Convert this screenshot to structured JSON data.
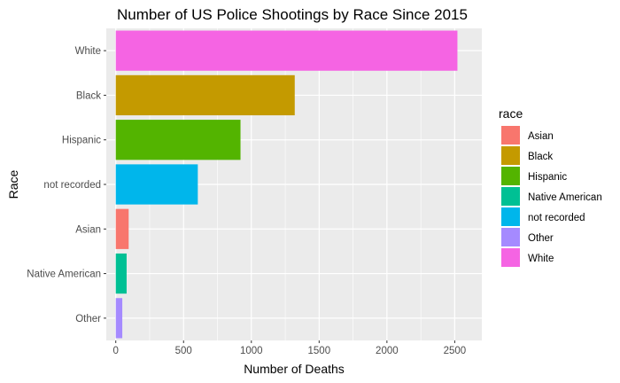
{
  "chart_data": {
    "type": "bar",
    "orientation": "horizontal",
    "title": "Number of US Police Shootings by Race Since 2015",
    "xlabel": "Number of Deaths",
    "ylabel": "Race",
    "categories": [
      "White",
      "Black",
      "Hispanic",
      "not recorded",
      "Asian",
      "Native American",
      "Other"
    ],
    "values": [
      2520,
      1320,
      920,
      605,
      95,
      80,
      48
    ],
    "colors": [
      "#F564E3",
      "#C49A00",
      "#53B400",
      "#00B6EB",
      "#F8766D",
      "#00C094",
      "#A58AFF"
    ],
    "xlim": [
      -70,
      2700
    ],
    "xticks": [
      0,
      500,
      1000,
      1500,
      2000,
      2500
    ],
    "xtick_labels": [
      "0",
      "500",
      "1000",
      "1500",
      "2000",
      "2500"
    ],
    "grid": true,
    "legend": {
      "title": "race",
      "placement": "right",
      "labels": [
        "Asian",
        "Black",
        "Hispanic",
        "Native American",
        "not recorded",
        "Other",
        "White"
      ],
      "colors": [
        "#F8766D",
        "#C49A00",
        "#53B400",
        "#00C094",
        "#00B6EB",
        "#A58AFF",
        "#F564E3"
      ]
    }
  },
  "theme": {
    "panel_background": "#EBEBEB",
    "grid_major": "#FFFFFF",
    "tick_color": "#333333"
  }
}
